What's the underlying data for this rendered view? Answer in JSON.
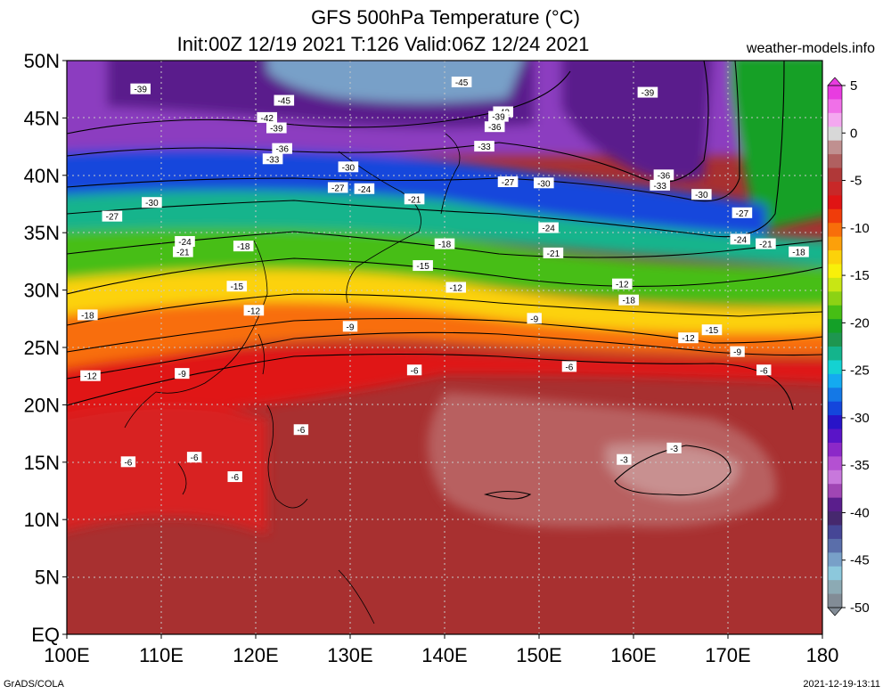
{
  "title": {
    "line1": "GFS 500hPa Temperature (°C)",
    "line2": "Init:00Z 12/19 2021 T:126 Valid:06Z 12/24 2021"
  },
  "credit": "weather-models.info",
  "footer": {
    "left": "GrADS/COLA",
    "right": "2021-12-19-13:11"
  },
  "map": {
    "lat_range": [
      0,
      50
    ],
    "lon_range": [
      100,
      180
    ],
    "lat_ticks": [
      "EQ",
      "5N",
      "10N",
      "15N",
      "20N",
      "25N",
      "30N",
      "35N",
      "40N",
      "45N",
      "50N"
    ],
    "lon_ticks": [
      "100E",
      "110E",
      "120E",
      "130E",
      "140E",
      "150E",
      "160E",
      "170E",
      "180"
    ],
    "grid": true
  },
  "colorbar": {
    "labels": [
      "5",
      "0",
      "-5",
      "-10",
      "-15",
      "-20",
      "-25",
      "-30",
      "-35",
      "-40",
      "-45",
      "-50"
    ],
    "colors": [
      "#e83ce0",
      "#f070e8",
      "#f4a8f0",
      "#d8d8d8",
      "#c09090",
      "#b06060",
      "#b03838",
      "#c82828",
      "#e01414",
      "#f03c0a",
      "#f86e0a",
      "#fca00a",
      "#fcd20a",
      "#f8f00a",
      "#c8e614",
      "#8cd214",
      "#46be14",
      "#14a028",
      "#1e9650",
      "#14b48c",
      "#14d2d2",
      "#14aaf0",
      "#1478e6",
      "#1446dc",
      "#2814c8",
      "#5a14c8",
      "#8c28c8",
      "#b450d2",
      "#c878dc",
      "#a046b4",
      "#5a1e8c",
      "#46286e",
      "#464696",
      "#5a6eaa",
      "#78a0c8",
      "#8cc8dc",
      "#8caab4",
      "#828c96"
    ]
  },
  "contour_labels": [
    {
      "text": "-39",
      "lon": 107.8,
      "lat": 47.5
    },
    {
      "text": "-45",
      "lon": 123.0,
      "lat": 46.5
    },
    {
      "text": "-42",
      "lon": 121.2,
      "lat": 45.0
    },
    {
      "text": "-39",
      "lon": 122.2,
      "lat": 44.1
    },
    {
      "text": "-36",
      "lon": 122.8,
      "lat": 42.3
    },
    {
      "text": "-33",
      "lon": 121.8,
      "lat": 41.4
    },
    {
      "text": "-30",
      "lon": 129.8,
      "lat": 40.7
    },
    {
      "text": "-27",
      "lon": 128.7,
      "lat": 38.9
    },
    {
      "text": "-24",
      "lon": 131.5,
      "lat": 38.8
    },
    {
      "text": "-21",
      "lon": 136.8,
      "lat": 37.9
    },
    {
      "text": "-30",
      "lon": 109.0,
      "lat": 37.6
    },
    {
      "text": "-27",
      "lon": 104.8,
      "lat": 36.4
    },
    {
      "text": "-24",
      "lon": 112.5,
      "lat": 34.2
    },
    {
      "text": "-21",
      "lon": 112.3,
      "lat": 33.3
    },
    {
      "text": "-18",
      "lon": 118.7,
      "lat": 33.8
    },
    {
      "text": "-18",
      "lon": 140.0,
      "lat": 34.0
    },
    {
      "text": "-15",
      "lon": 118.0,
      "lat": 30.3
    },
    {
      "text": "-15",
      "lon": 137.7,
      "lat": 32.1
    },
    {
      "text": "-12",
      "lon": 119.8,
      "lat": 28.2
    },
    {
      "text": "-12",
      "lon": 141.2,
      "lat": 30.2
    },
    {
      "text": "-18",
      "lon": 102.2,
      "lat": 27.8
    },
    {
      "text": "-9",
      "lon": 130.0,
      "lat": 26.8
    },
    {
      "text": "-9",
      "lon": 112.2,
      "lat": 22.7
    },
    {
      "text": "-12",
      "lon": 102.5,
      "lat": 22.5
    },
    {
      "text": "-6",
      "lon": 136.8,
      "lat": 23.0
    },
    {
      "text": "-6",
      "lon": 124.8,
      "lat": 17.8
    },
    {
      "text": "-6",
      "lon": 113.5,
      "lat": 15.4
    },
    {
      "text": "-6",
      "lon": 106.5,
      "lat": 15.0
    },
    {
      "text": "-6",
      "lon": 117.8,
      "lat": 13.7
    },
    {
      "text": "-45",
      "lon": 141.8,
      "lat": 48.1
    },
    {
      "text": "-42",
      "lon": 146.2,
      "lat": 45.5
    },
    {
      "text": "-39",
      "lon": 145.7,
      "lat": 45.1
    },
    {
      "text": "-36",
      "lon": 145.3,
      "lat": 44.2
    },
    {
      "text": "-33",
      "lon": 144.2,
      "lat": 42.5
    },
    {
      "text": "-27",
      "lon": 146.7,
      "lat": 39.4
    },
    {
      "text": "-30",
      "lon": 150.5,
      "lat": 39.3
    },
    {
      "text": "-24",
      "lon": 151.0,
      "lat": 35.4
    },
    {
      "text": "-21",
      "lon": 151.5,
      "lat": 33.2
    },
    {
      "text": "-18",
      "lon": 159.5,
      "lat": 29.1
    },
    {
      "text": "-12",
      "lon": 158.8,
      "lat": 30.5
    },
    {
      "text": "-9",
      "lon": 149.5,
      "lat": 27.5
    },
    {
      "text": "-6",
      "lon": 153.2,
      "lat": 23.3
    },
    {
      "text": "-39",
      "lon": 161.5,
      "lat": 47.2
    },
    {
      "text": "-36",
      "lon": 163.2,
      "lat": 40.0
    },
    {
      "text": "-33",
      "lon": 162.8,
      "lat": 39.1
    },
    {
      "text": "-30",
      "lon": 167.2,
      "lat": 38.3
    },
    {
      "text": "-27",
      "lon": 171.5,
      "lat": 36.7
    },
    {
      "text": "-24",
      "lon": 171.3,
      "lat": 34.4
    },
    {
      "text": "-21",
      "lon": 174.0,
      "lat": 34.0
    },
    {
      "text": "-18",
      "lon": 177.5,
      "lat": 33.3
    },
    {
      "text": "-15",
      "lon": 168.3,
      "lat": 26.5
    },
    {
      "text": "-12",
      "lon": 165.8,
      "lat": 25.8
    },
    {
      "text": "-9",
      "lon": 171.0,
      "lat": 24.6
    },
    {
      "text": "-6",
      "lon": 173.8,
      "lat": 23.0
    },
    {
      "text": "-3",
      "lon": 159.0,
      "lat": 15.2
    },
    {
      "text": "-3",
      "lon": 164.3,
      "lat": 16.2
    }
  ]
}
